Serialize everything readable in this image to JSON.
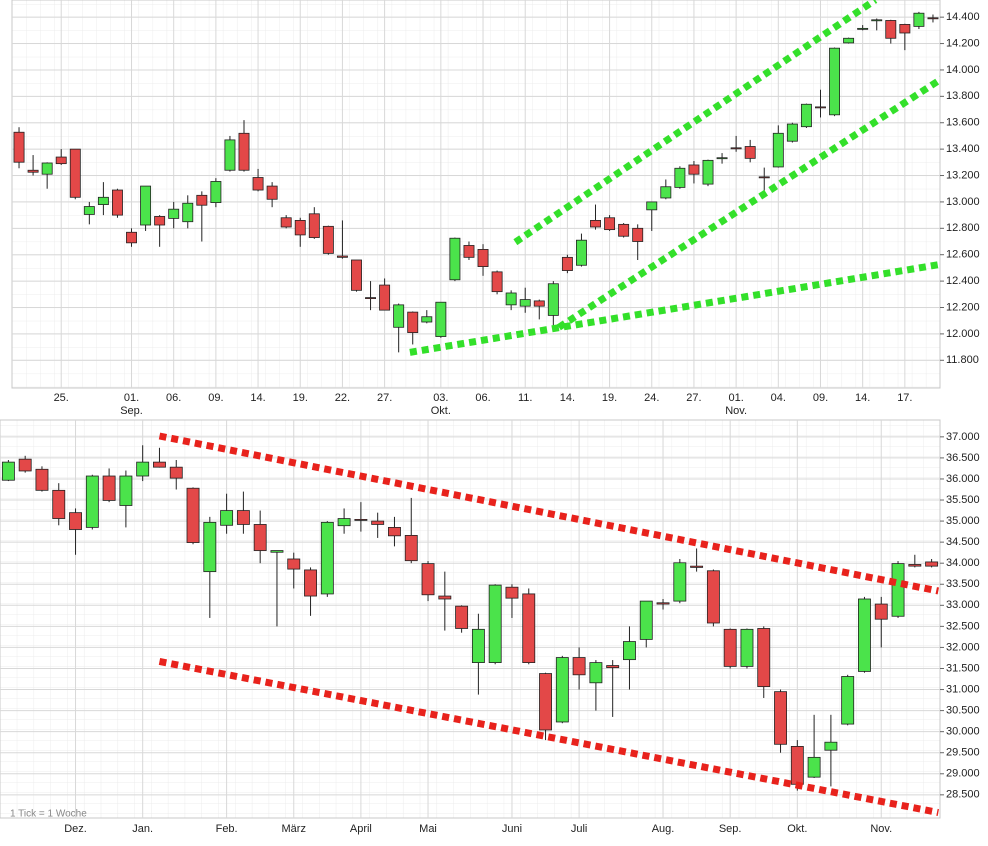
{
  "chart_data": [
    {
      "type": "candlestick",
      "up_color": "#4be34b",
      "down_color": "#e34848",
      "grid": true,
      "categories": [
        null,
        null,
        null,
        "25.",
        null,
        null,
        null,
        null,
        "01.",
        null,
        null,
        "06.",
        null,
        null,
        "09.",
        null,
        null,
        "14.",
        null,
        null,
        "19.",
        null,
        null,
        "22.",
        null,
        null,
        "27.",
        null,
        null,
        null,
        "03.",
        null,
        null,
        "06.",
        null,
        null,
        "11.",
        null,
        null,
        "14.",
        null,
        null,
        "19.",
        null,
        null,
        "24.",
        null,
        null,
        "27.",
        null,
        null,
        "01.",
        null,
        null,
        "04.",
        null,
        null,
        "09.",
        null,
        null,
        "14.",
        null,
        null,
        "17.",
        null,
        null
      ],
      "month_labels": [
        {
          "index": 8,
          "label": "Sep."
        },
        {
          "index": 30,
          "label": "Okt."
        },
        {
          "index": 51,
          "label": "Nov."
        }
      ],
      "open": [
        13528,
        13240,
        13210,
        13340,
        13400,
        12905,
        12980,
        13090,
        12770,
        12825,
        12890,
        12875,
        12850,
        13050,
        12995,
        13240,
        13520,
        13185,
        13120,
        12880,
        12860,
        12910,
        12815,
        12590,
        12560,
        12275,
        12370,
        12050,
        12165,
        12090,
        11980,
        12410,
        12670,
        12640,
        12470,
        12220,
        12210,
        12250,
        12140,
        12580,
        12520,
        12860,
        12880,
        12830,
        12800,
        12940,
        13030,
        13110,
        13280,
        13135,
        13330,
        13410,
        13420,
        13190,
        13265,
        13460,
        13570,
        13720,
        13660,
        14205,
        14310,
        14375,
        14375,
        14345,
        14330,
        14395
      ],
      "high": [
        13566,
        13355,
        13300,
        13400,
        13400,
        13000,
        13150,
        13100,
        12800,
        13120,
        12900,
        13000,
        13050,
        13080,
        13180,
        13500,
        13620,
        13250,
        13150,
        12900,
        12880,
        12960,
        12820,
        12860,
        12560,
        12400,
        12420,
        12230,
        12170,
        12180,
        12240,
        12730,
        12700,
        12680,
        12480,
        12330,
        12350,
        12260,
        12400,
        12600,
        12760,
        12980,
        12900,
        12840,
        12830,
        13000,
        13170,
        13270,
        13310,
        13320,
        13370,
        13500,
        13470,
        13260,
        13580,
        13600,
        13745,
        13850,
        14170,
        14245,
        14340,
        14390,
        14380,
        14350,
        14440,
        14420
      ],
      "low": [
        13255,
        13200,
        13100,
        13280,
        13020,
        12830,
        12900,
        12880,
        12660,
        12780,
        12660,
        12800,
        12800,
        12700,
        12960,
        13230,
        13230,
        13080,
        12960,
        12800,
        12660,
        12720,
        12600,
        12570,
        12320,
        12180,
        12180,
        11860,
        11920,
        12080,
        11970,
        12400,
        12560,
        12440,
        12300,
        12180,
        12160,
        12110,
        12050,
        12460,
        12510,
        12790,
        12780,
        12730,
        12560,
        12780,
        13020,
        13100,
        13140,
        13120,
        13290,
        13380,
        13300,
        13070,
        13260,
        13450,
        13560,
        13640,
        13650,
        14200,
        14300,
        14300,
        14200,
        14150,
        14310,
        14360
      ],
      "close": [
        13301,
        13225,
        13295,
        13290,
        13035,
        12965,
        13035,
        12900,
        12690,
        13120,
        12825,
        12945,
        12990,
        12975,
        13155,
        13470,
        13240,
        13090,
        13020,
        12810,
        12750,
        12730,
        12610,
        12580,
        12330,
        12270,
        12180,
        12220,
        12010,
        12130,
        12240,
        12725,
        12580,
        12510,
        12320,
        12310,
        12260,
        12210,
        12380,
        12480,
        12710,
        12810,
        12790,
        12740,
        12700,
        13000,
        13115,
        13255,
        13210,
        13315,
        13335,
        13405,
        13330,
        13185,
        13520,
        13590,
        13740,
        13715,
        14165,
        14240,
        14315,
        14380,
        14240,
        14280,
        14430,
        14390
      ],
      "ylim": [
        11590,
        14530
      ],
      "yticks": [
        {
          "value": 11800,
          "label": "11.800"
        },
        {
          "value": 12000,
          "label": "12.000"
        },
        {
          "value": 12200,
          "label": "12.200"
        },
        {
          "value": 12400,
          "label": "12.400"
        },
        {
          "value": 12600,
          "label": "12.600"
        },
        {
          "value": 12800,
          "label": "12.800"
        },
        {
          "value": 13000,
          "label": "13.000"
        },
        {
          "value": 13200,
          "label": "13.200"
        },
        {
          "value": 13400,
          "label": "13.400"
        },
        {
          "value": 13600,
          "label": "13.600"
        },
        {
          "value": 13800,
          "label": "13.800"
        },
        {
          "value": 14000,
          "label": "14.000"
        },
        {
          "value": 14200,
          "label": "14.200"
        },
        {
          "value": 14400,
          "label": "14.400"
        }
      ],
      "trendlines": [
        {
          "color": "#33e02a",
          "x": [
            35.3,
            60.9
          ],
          "y": [
            12695,
            14530
          ]
        },
        {
          "color": "#33e02a",
          "x": [
            38.4,
            66.0
          ],
          "y": [
            12050,
            13960
          ]
        },
        {
          "color": "#33e02a",
          "x": [
            27.8,
            66.0
          ],
          "y": [
            11860,
            12535
          ]
        }
      ]
    },
    {
      "type": "candlestick",
      "up_color": "#4be34b",
      "down_color": "#e34848",
      "grid": true,
      "note": "1 Tick = 1 Woche",
      "categories": [
        null,
        null,
        null,
        null,
        "Dez.",
        null,
        null,
        null,
        "Jan.",
        null,
        null,
        null,
        null,
        "Feb.",
        null,
        null,
        null,
        "März",
        null,
        null,
        null,
        "April",
        null,
        null,
        null,
        "Mai",
        null,
        null,
        null,
        null,
        "Juni",
        null,
        null,
        null,
        "Juli",
        null,
        null,
        null,
        null,
        "Aug.",
        null,
        null,
        null,
        "Sep.",
        null,
        null,
        null,
        "Okt.",
        null,
        null,
        null,
        null,
        "Nov.",
        null,
        null,
        null
      ],
      "open": [
        35970,
        36470,
        36230,
        35730,
        35200,
        34850,
        36070,
        35370,
        36070,
        36400,
        36280,
        35780,
        33800,
        34900,
        35250,
        34920,
        34260,
        34100,
        33840,
        33270,
        34890,
        35040,
        35000,
        34850,
        34660,
        33990,
        33220,
        32980,
        31640,
        31640,
        33430,
        33270,
        31380,
        30230,
        31760,
        31160,
        31570,
        31710,
        32190,
        33060,
        33100,
        33930,
        33820,
        32430,
        31550,
        32450,
        30950,
        29650,
        28920,
        29560,
        30180,
        31430,
        33030,
        32740,
        33970,
        34030
      ],
      "high": [
        36450,
        36550,
        36300,
        35900,
        35300,
        36100,
        36250,
        36200,
        36800,
        36740,
        36450,
        35800,
        35100,
        35650,
        35700,
        35250,
        34300,
        34250,
        33900,
        35000,
        35300,
        35450,
        35200,
        35100,
        35550,
        34050,
        33800,
        33000,
        32800,
        33500,
        33500,
        33400,
        31400,
        31800,
        32000,
        31700,
        31700,
        32500,
        33100,
        33150,
        34100,
        34350,
        33850,
        32450,
        32450,
        32500,
        31000,
        29800,
        30400,
        30400,
        31350,
        33200,
        33200,
        34050,
        34200,
        34100
      ],
      "low": [
        35950,
        36150,
        35700,
        34900,
        34200,
        34800,
        35450,
        34850,
        35950,
        36270,
        35750,
        34450,
        32700,
        34700,
        34700,
        34000,
        32500,
        33400,
        32750,
        33200,
        34700,
        34750,
        34600,
        34400,
        34000,
        33100,
        32400,
        32350,
        30880,
        31600,
        32700,
        31600,
        29800,
        30200,
        31000,
        30500,
        30350,
        31000,
        32000,
        32900,
        33050,
        33800,
        32500,
        31500,
        31500,
        30800,
        29500,
        28600,
        28900,
        28700,
        30150,
        31400,
        32000,
        32700,
        33900,
        33900
      ],
      "close": [
        36400,
        36190,
        35730,
        35060,
        34800,
        36070,
        35490,
        36070,
        36400,
        36280,
        36020,
        34490,
        34970,
        35250,
        34920,
        34300,
        34300,
        33860,
        33220,
        34970,
        35060,
        35030,
        34920,
        34650,
        34060,
        33250,
        33150,
        32450,
        32430,
        33480,
        33170,
        31640,
        30040,
        31760,
        31350,
        31640,
        31520,
        32140,
        33100,
        33030,
        34010,
        33900,
        32580,
        31550,
        32430,
        31070,
        29700,
        28750,
        29390,
        29750,
        31310,
        33150,
        32670,
        33990,
        33930,
        33930
      ],
      "ylim": [
        27950,
        37400
      ],
      "yticks": [
        {
          "value": 28500,
          "label": "28.500"
        },
        {
          "value": 29000,
          "label": "29.000"
        },
        {
          "value": 29500,
          "label": "29.500"
        },
        {
          "value": 30000,
          "label": "30.000"
        },
        {
          "value": 30500,
          "label": "30.500"
        },
        {
          "value": 31000,
          "label": "31.000"
        },
        {
          "value": 31500,
          "label": "31.500"
        },
        {
          "value": 32000,
          "label": "32.000"
        },
        {
          "value": 32500,
          "label": "32.500"
        },
        {
          "value": 33000,
          "label": "33.000"
        },
        {
          "value": 33500,
          "label": "33.500"
        },
        {
          "value": 34000,
          "label": "34.000"
        },
        {
          "value": 34500,
          "label": "34.500"
        },
        {
          "value": 35000,
          "label": "35.000"
        },
        {
          "value": 35500,
          "label": "35.500"
        },
        {
          "value": 36000,
          "label": "36.000"
        },
        {
          "value": 36500,
          "label": "36.500"
        },
        {
          "value": 37000,
          "label": "37.000"
        }
      ],
      "trendlines": [
        {
          "color": "#e8221c",
          "x": [
            9.0,
            55.4
          ],
          "y": [
            37020,
            33340
          ]
        },
        {
          "color": "#e8221c",
          "x": [
            9.0,
            55.4
          ],
          "y": [
            31666,
            28080
          ]
        }
      ]
    }
  ]
}
